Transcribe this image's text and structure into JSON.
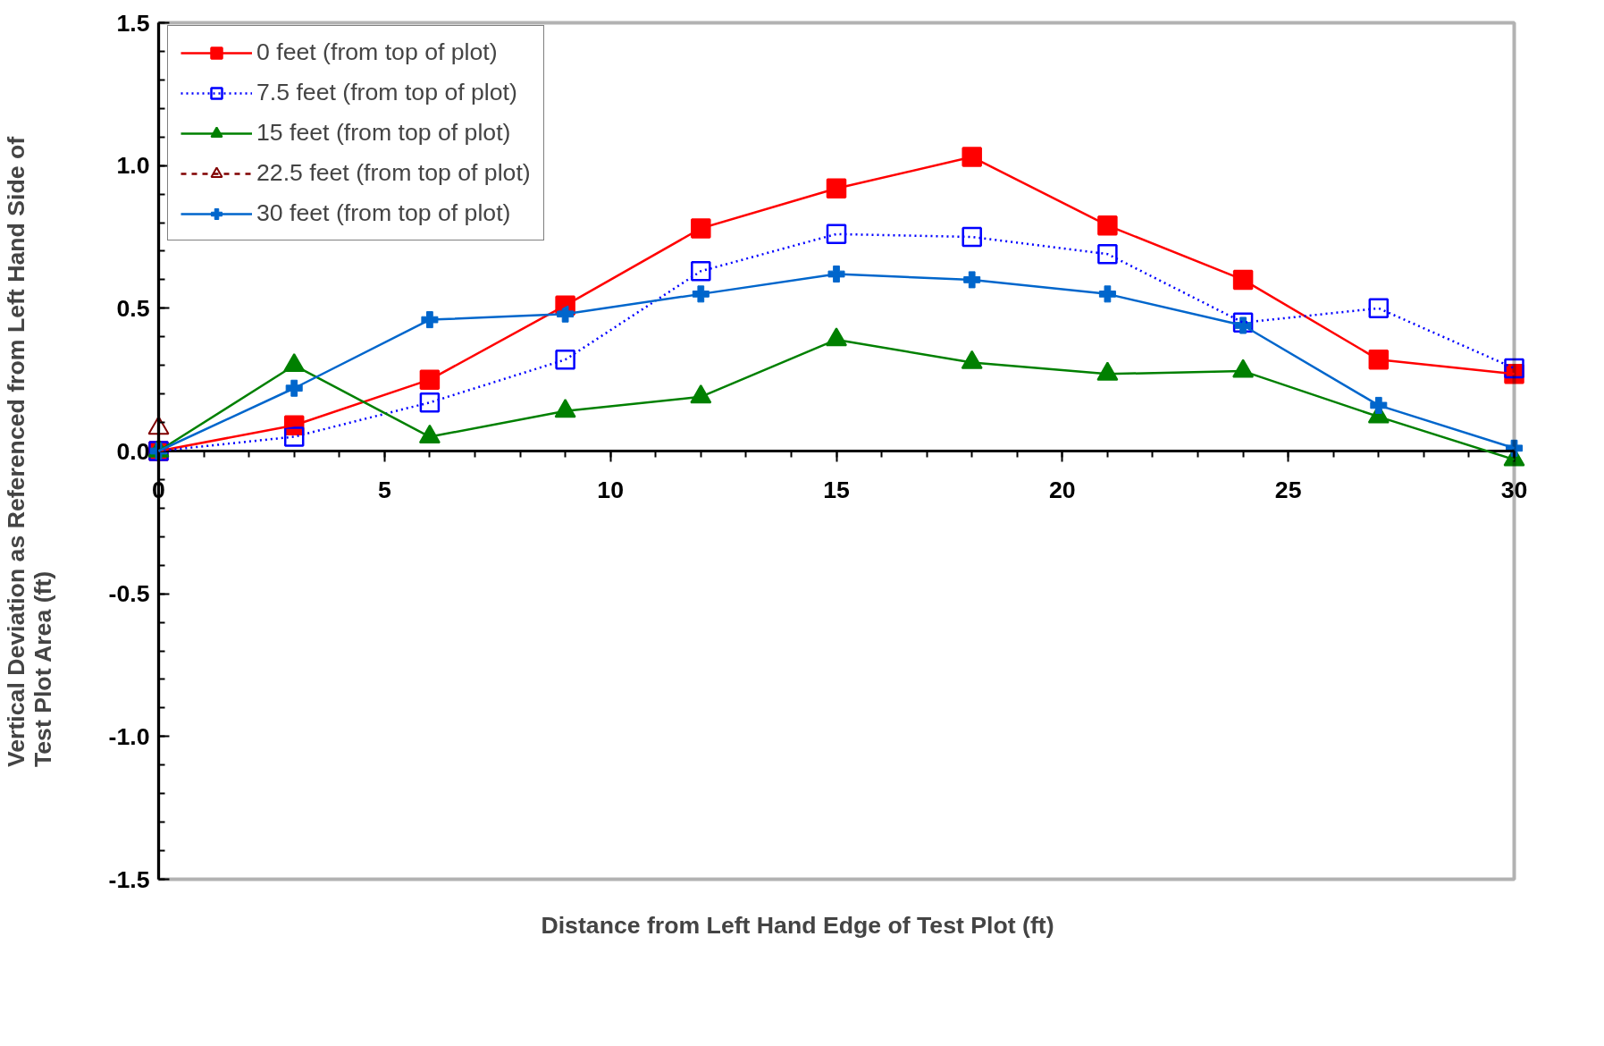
{
  "chart_data": {
    "type": "line",
    "xlabel": "Distance from Left Hand Edge of Test Plot (ft)",
    "ylabel": "Vertical Deviation as Referenced from Left Hand Side of\nTest Plot Area (ft)",
    "x": [
      0,
      3,
      6,
      9,
      12,
      15,
      18,
      21,
      24,
      27,
      30
    ],
    "series": [
      {
        "name": "0 feet (from top of plot)",
        "color": "#ff0000",
        "marker": "square",
        "line_style": "solid",
        "values": [
          0,
          0.09,
          0.25,
          0.51,
          0.78,
          0.92,
          1.03,
          0.79,
          0.6,
          0.32,
          0.27
        ]
      },
      {
        "name": "7.5 feet (from top of plot)",
        "color": "#0000ff",
        "marker": "square",
        "line_style": "dotted",
        "values": [
          0,
          0.05,
          0.17,
          0.32,
          0.63,
          0.76,
          0.75,
          0.69,
          0.45,
          0.5,
          0.29
        ]
      },
      {
        "name": "15 feet (from top of plot)",
        "color": "#008000",
        "marker": "triangle",
        "line_style": "solid",
        "values": [
          0,
          0.3,
          0.05,
          0.14,
          0.19,
          0.39,
          0.31,
          0.27,
          0.28,
          0.12,
          -0.03
        ]
      },
      {
        "name": "22.5 feet (from top of plot)",
        "color": "#800000",
        "marker": "triangle",
        "line_style": "dashed",
        "values": [
          0.08,
          null,
          null,
          null,
          null,
          null,
          null,
          null,
          null,
          null,
          null
        ]
      },
      {
        "name": "30 feet (from top of plot)",
        "color": "#0066cc",
        "marker": "cross",
        "line_style": "solid",
        "values": [
          0,
          0.22,
          0.46,
          0.48,
          0.55,
          0.62,
          0.6,
          0.55,
          0.44,
          0.16,
          0.01
        ]
      }
    ],
    "xlim": [
      0,
      30
    ],
    "xticks": [
      0,
      5,
      10,
      15,
      20,
      25,
      30
    ],
    "ylim": [
      -1.5,
      1.5
    ],
    "yticks": [
      {
        "value": -1.5,
        "label": "-1.5"
      },
      {
        "value": -1.0,
        "label": "-1.0"
      },
      {
        "value": -0.5,
        "label": "-0.5"
      },
      {
        "value": 0,
        "label": "0.0"
      },
      {
        "value": 0.5,
        "label": "0.5"
      },
      {
        "value": 1.0,
        "label": "1.0"
      },
      {
        "value": 1.5,
        "label": "1.5"
      }
    ],
    "grid": false,
    "legend": "top left"
  }
}
